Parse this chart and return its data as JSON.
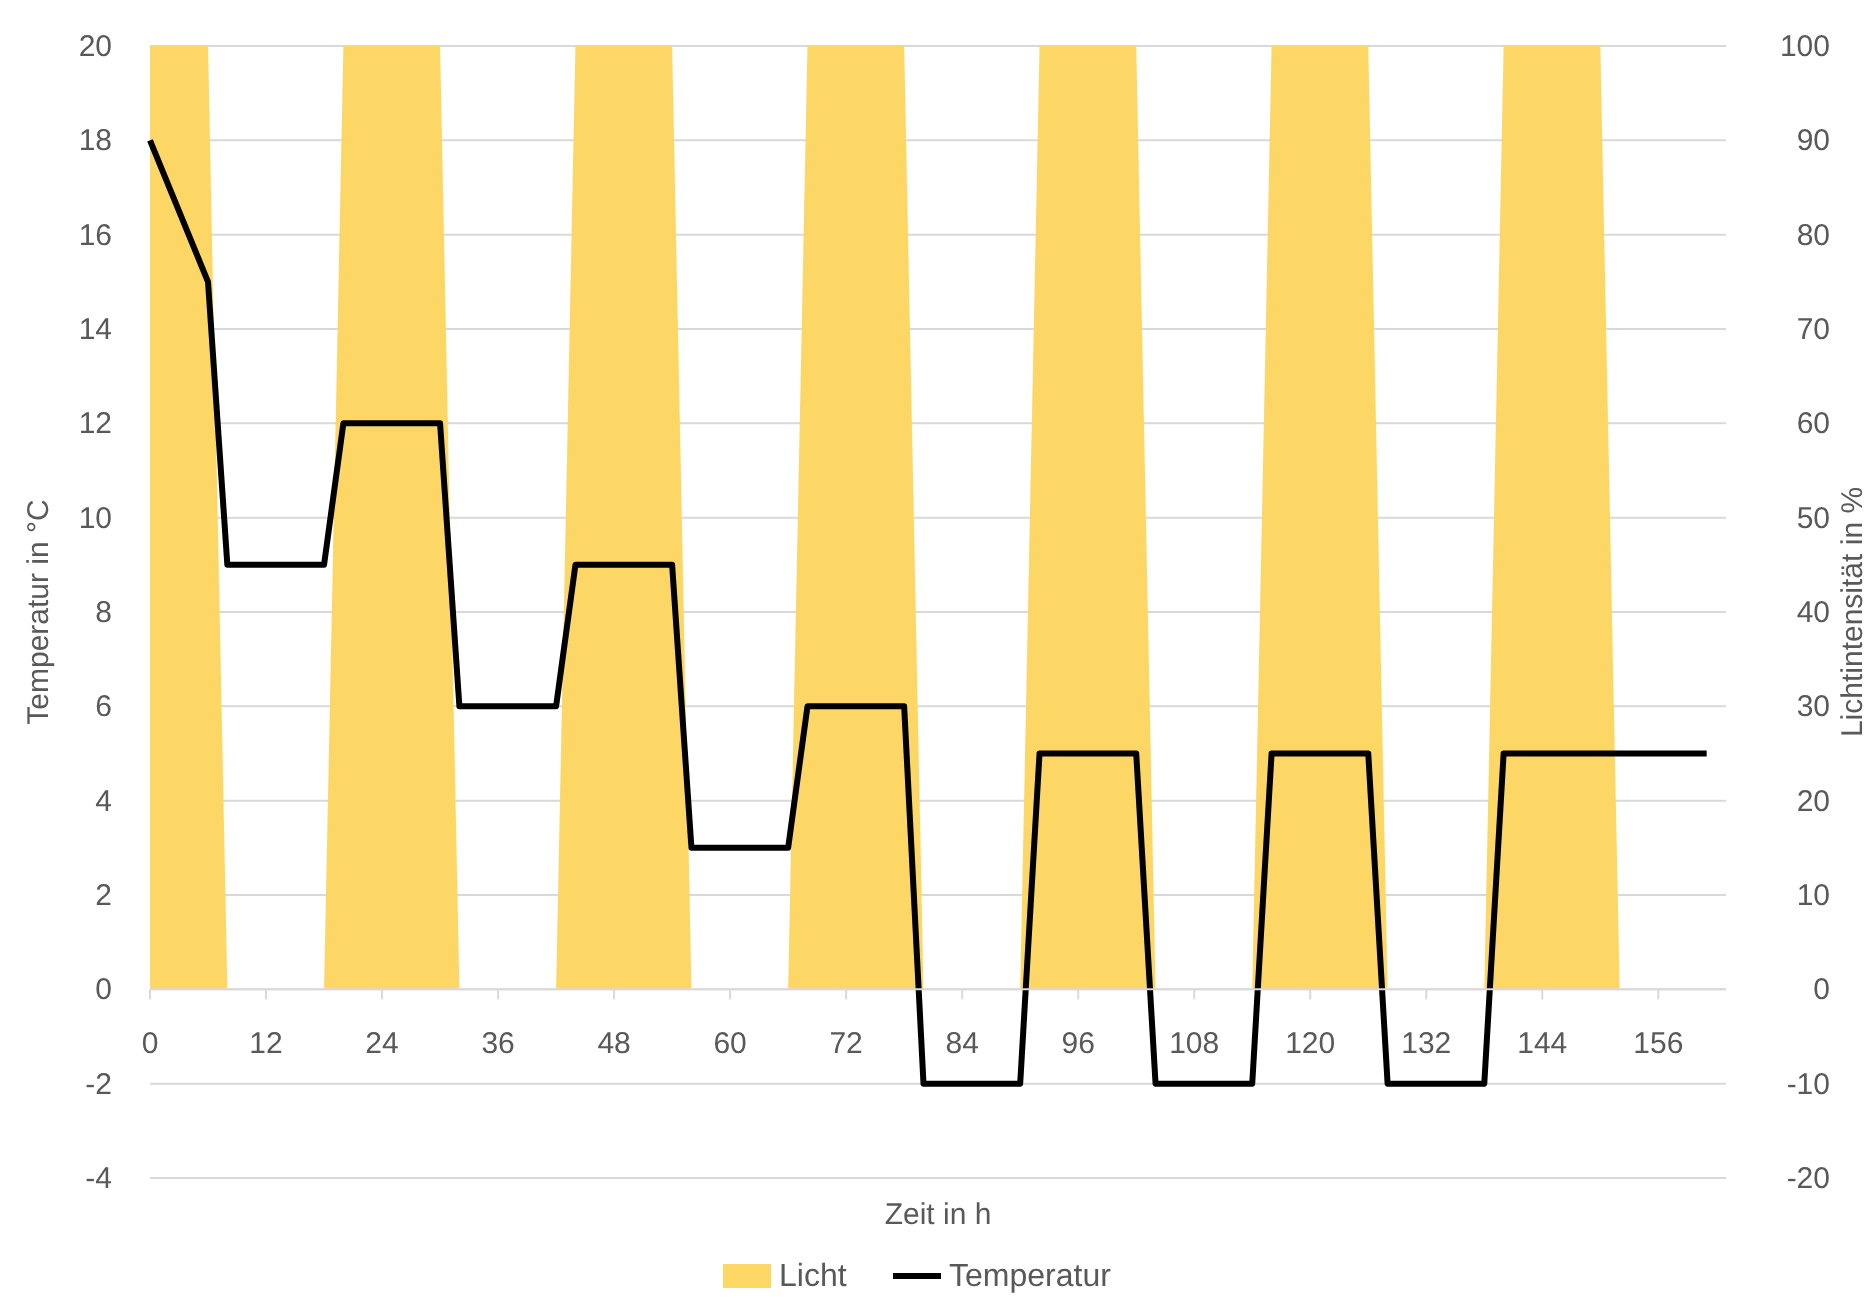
{
  "chart_data": {
    "type": "line",
    "xlabel": "Zeit in h",
    "ylabel": "Temperatur in °C",
    "y2label": "Lichtintensität in %",
    "xlim": [
      0,
      163
    ],
    "xticks": [
      0,
      12,
      24,
      36,
      48,
      60,
      72,
      84,
      96,
      108,
      120,
      132,
      144,
      156
    ],
    "ylim": [
      -4,
      20
    ],
    "yticks": [
      -4,
      -2,
      0,
      2,
      4,
      6,
      8,
      10,
      12,
      14,
      16,
      18,
      20
    ],
    "y2lim": [
      -20,
      100
    ],
    "y2ticks": [
      -20,
      -10,
      0,
      10,
      20,
      30,
      40,
      50,
      60,
      70,
      80,
      90,
      100
    ],
    "grid": "y",
    "legend": "bottom",
    "line_style": "solid",
    "marker": "none",
    "series": [
      {
        "name": "Licht",
        "type": "area",
        "axis": "y2",
        "color": "#fdd766",
        "x": [
          0,
          6,
          8,
          18,
          20,
          30,
          32,
          42,
          44,
          54,
          56,
          66,
          68,
          78,
          80,
          90,
          92,
          102,
          104,
          114,
          116,
          126,
          128,
          138,
          140,
          150,
          152
        ],
        "values": [
          100,
          100,
          0,
          0,
          100,
          100,
          0,
          0,
          100,
          100,
          0,
          0,
          100,
          100,
          0,
          0,
          100,
          100,
          0,
          0,
          100,
          100,
          0,
          0,
          100,
          100,
          0
        ]
      },
      {
        "name": "Temperatur",
        "color": "#000000",
        "x": [
          0,
          6,
          8,
          18,
          20,
          30,
          32,
          42,
          44,
          54,
          56,
          66,
          68,
          78,
          80,
          90,
          92,
          102,
          104,
          114,
          116,
          126,
          128,
          138,
          140,
          161
        ],
        "values": [
          18,
          15,
          9,
          9,
          12,
          12,
          6,
          6,
          9,
          9,
          3,
          3,
          6,
          6,
          -2,
          -2,
          5,
          5,
          -2,
          -2,
          5,
          5,
          -2,
          -2,
          5,
          5
        ]
      }
    ]
  }
}
